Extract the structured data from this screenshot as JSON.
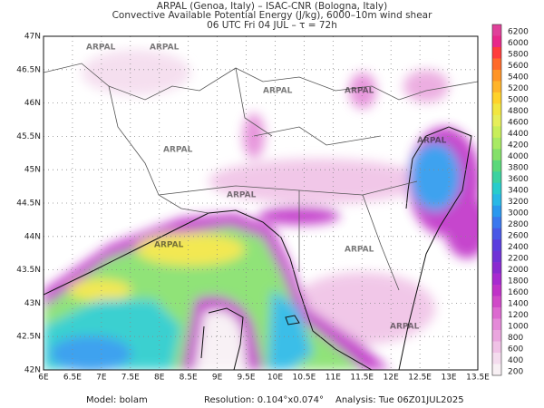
{
  "header": {
    "lines": [
      "ARPAL (Genoa, Italy)  –  ISAC-CNR (Bologna, Italy)",
      "Convective Available Potential Energy (J/kg), 6000–10m wind shear",
      "06 UTC Fri 04 JUL  –  τ = 72h"
    ]
  },
  "map": {
    "lat_labels": [
      "47N",
      "46.5N",
      "46N",
      "45.5N",
      "45N",
      "44.5N",
      "44N",
      "43.5N",
      "43N",
      "42.5N",
      "42N"
    ],
    "lon_labels": [
      "6E",
      "6.5E",
      "7E",
      "7.5E",
      "8E",
      "8.5E",
      "9E",
      "9.5E",
      "10E",
      "10.5E",
      "11E",
      "11.5E",
      "12E",
      "12.5E",
      "13E",
      "13.5E"
    ],
    "watermark": "ARPAL"
  },
  "colorbar": {
    "levels": [
      6200,
      6000,
      5800,
      5600,
      5400,
      5200,
      5000,
      4800,
      4600,
      4400,
      4200,
      4000,
      3800,
      3600,
      3400,
      3200,
      3000,
      2800,
      2600,
      2400,
      2200,
      2000,
      1800,
      1600,
      1400,
      1200,
      1000,
      800,
      600,
      400,
      200
    ],
    "colors": [
      "#e0409a",
      "#e8288a",
      "#ff3c3c",
      "#ff6a2a",
      "#ff9426",
      "#ffb42a",
      "#ffd22a",
      "#f2e640",
      "#e6ee5a",
      "#c8ee5a",
      "#a8ea64",
      "#84e06a",
      "#5ad87a",
      "#3cd2a0",
      "#28cccc",
      "#28b8e6",
      "#2a98ee",
      "#3a78ee",
      "#4a58e6",
      "#5a3ede",
      "#7032d6",
      "#8a2ad0",
      "#a82ad0",
      "#c032c8",
      "#d04ac8",
      "#dc6ad0",
      "#e48ad8",
      "#eaa6de",
      "#f0c2e6",
      "#f4dcee",
      "#f8f0f4"
    ]
  },
  "footer": {
    "model": "Model: bolam",
    "resolution": "Resolution: 0.104°x0.074°",
    "analysis": "Analysis: Tue 06Z01JUL2025"
  }
}
